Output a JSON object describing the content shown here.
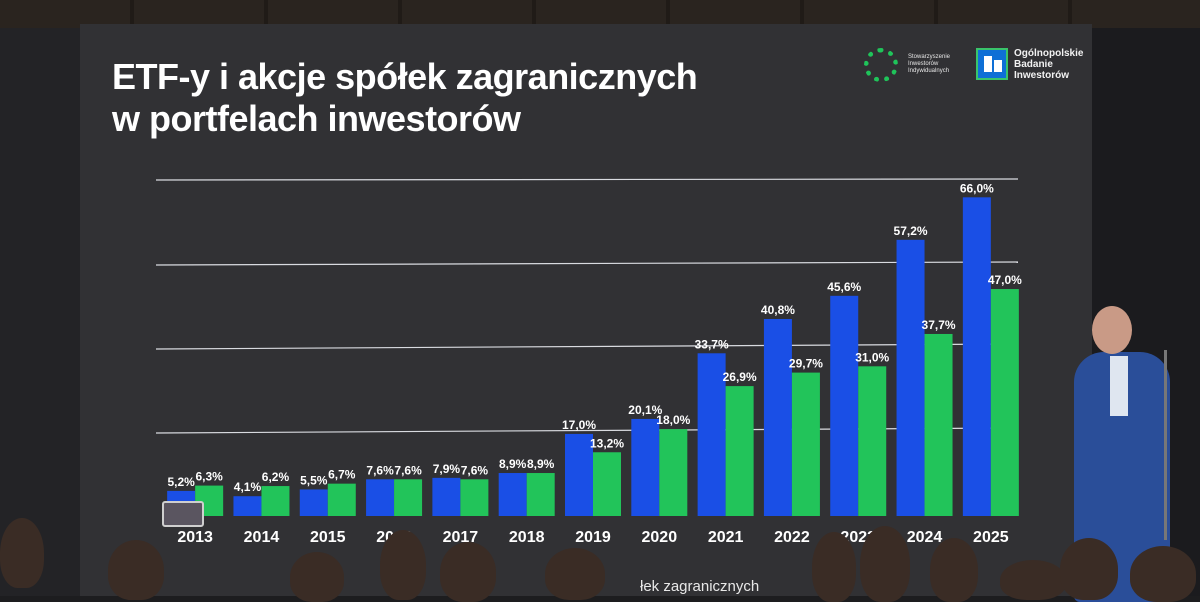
{
  "slide": {
    "title_line1": "ETF-y i akcje spółek zagranicznych",
    "title_line2": "w portfelach inwestorów",
    "logo_sii": "Stowarzyszenie Inwestorów Indywidualnych",
    "logo_obi": "Ogólnopolskie Badanie Inwestorów",
    "legend_fragment": "łek zagranicznych"
  },
  "colors": {
    "series_etf": "#1a4fe6",
    "series_stocks": "#22c45a",
    "background": "#313134",
    "gridline": "#d9dbe0",
    "text": "#ffffff"
  },
  "chart_data": {
    "type": "bar",
    "categories": [
      "2013",
      "2014",
      "2015",
      "2016",
      "2017",
      "2018",
      "2019",
      "2020",
      "2021",
      "2022",
      "2023",
      "2024",
      "2025"
    ],
    "x_tick_labels": [
      "2013",
      "2014",
      "2015",
      "2016",
      "2017",
      "2018",
      "2019",
      "2020",
      "2021",
      "2022",
      "2023",
      "2024",
      "2025"
    ],
    "series": [
      {
        "values": [
          5.2,
          4.1,
          5.5,
          7.6,
          7.9,
          8.9,
          17.0,
          20.1,
          33.7,
          40.8,
          45.6,
          57.2,
          66.0
        ],
        "labels": [
          "5,2%",
          "4,1%",
          "5,5%",
          "7,6%",
          "7,9%",
          "8,9%",
          "17,0%",
          "20,1%",
          "33,7%",
          "40,8%",
          "45,6%",
          "57,2%",
          "66,0%"
        ]
      },
      {
        "values": [
          6.3,
          6.2,
          6.7,
          7.6,
          7.6,
          8.9,
          13.2,
          18.0,
          26.9,
          29.7,
          31.0,
          37.7,
          47.0
        ],
        "labels": [
          "6,3%",
          "6,2%",
          "6,7%",
          "7,6%",
          "7,6%",
          "8,9%",
          "13,2%",
          "18,0%",
          "26,9%",
          "29,7%",
          "31,0%",
          "37,7%",
          "47,0%"
        ]
      }
    ],
    "ylim": [
      0,
      70
    ],
    "grid": true,
    "title": "ETF-y i akcje spółek zagranicznych w portfelach inwestorów"
  }
}
